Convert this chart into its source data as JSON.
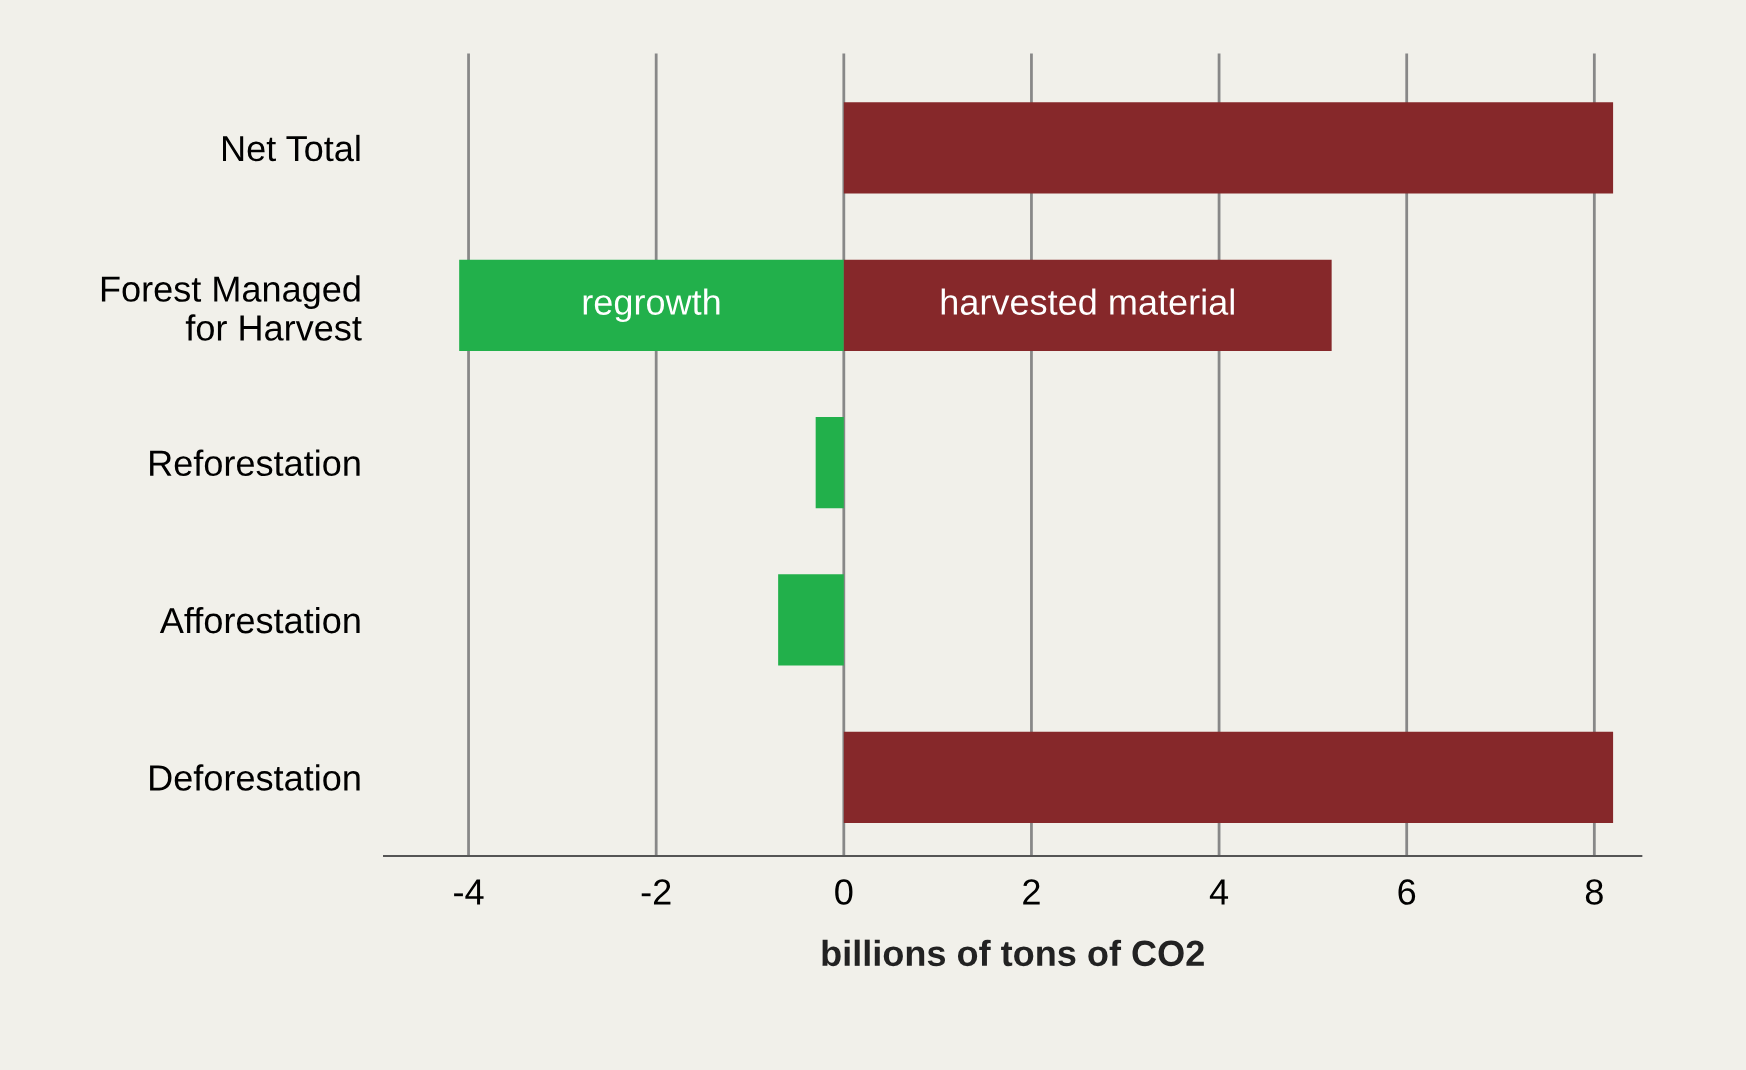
{
  "chart_data": {
    "type": "bar",
    "orientation": "horizontal",
    "categories": [
      "Net Total",
      "Forest Managed\nfor Harvest",
      "Reforestation",
      "Afforestation",
      "Deforestation"
    ],
    "series": [
      {
        "name": "regrowth",
        "color": "#22b04b",
        "values": [
          null,
          -4.1,
          -0.3,
          -0.7,
          null
        ]
      },
      {
        "name": "harvested material",
        "color": "#86282a",
        "values": [
          8.2,
          5.2,
          null,
          null,
          8.2
        ]
      }
    ],
    "xlabel": "billions of tons of CO2",
    "xlim": [
      -4.9,
      8.5
    ],
    "xticks": [
      -4,
      -2,
      0,
      2,
      4,
      6,
      8
    ],
    "grid": "x"
  }
}
